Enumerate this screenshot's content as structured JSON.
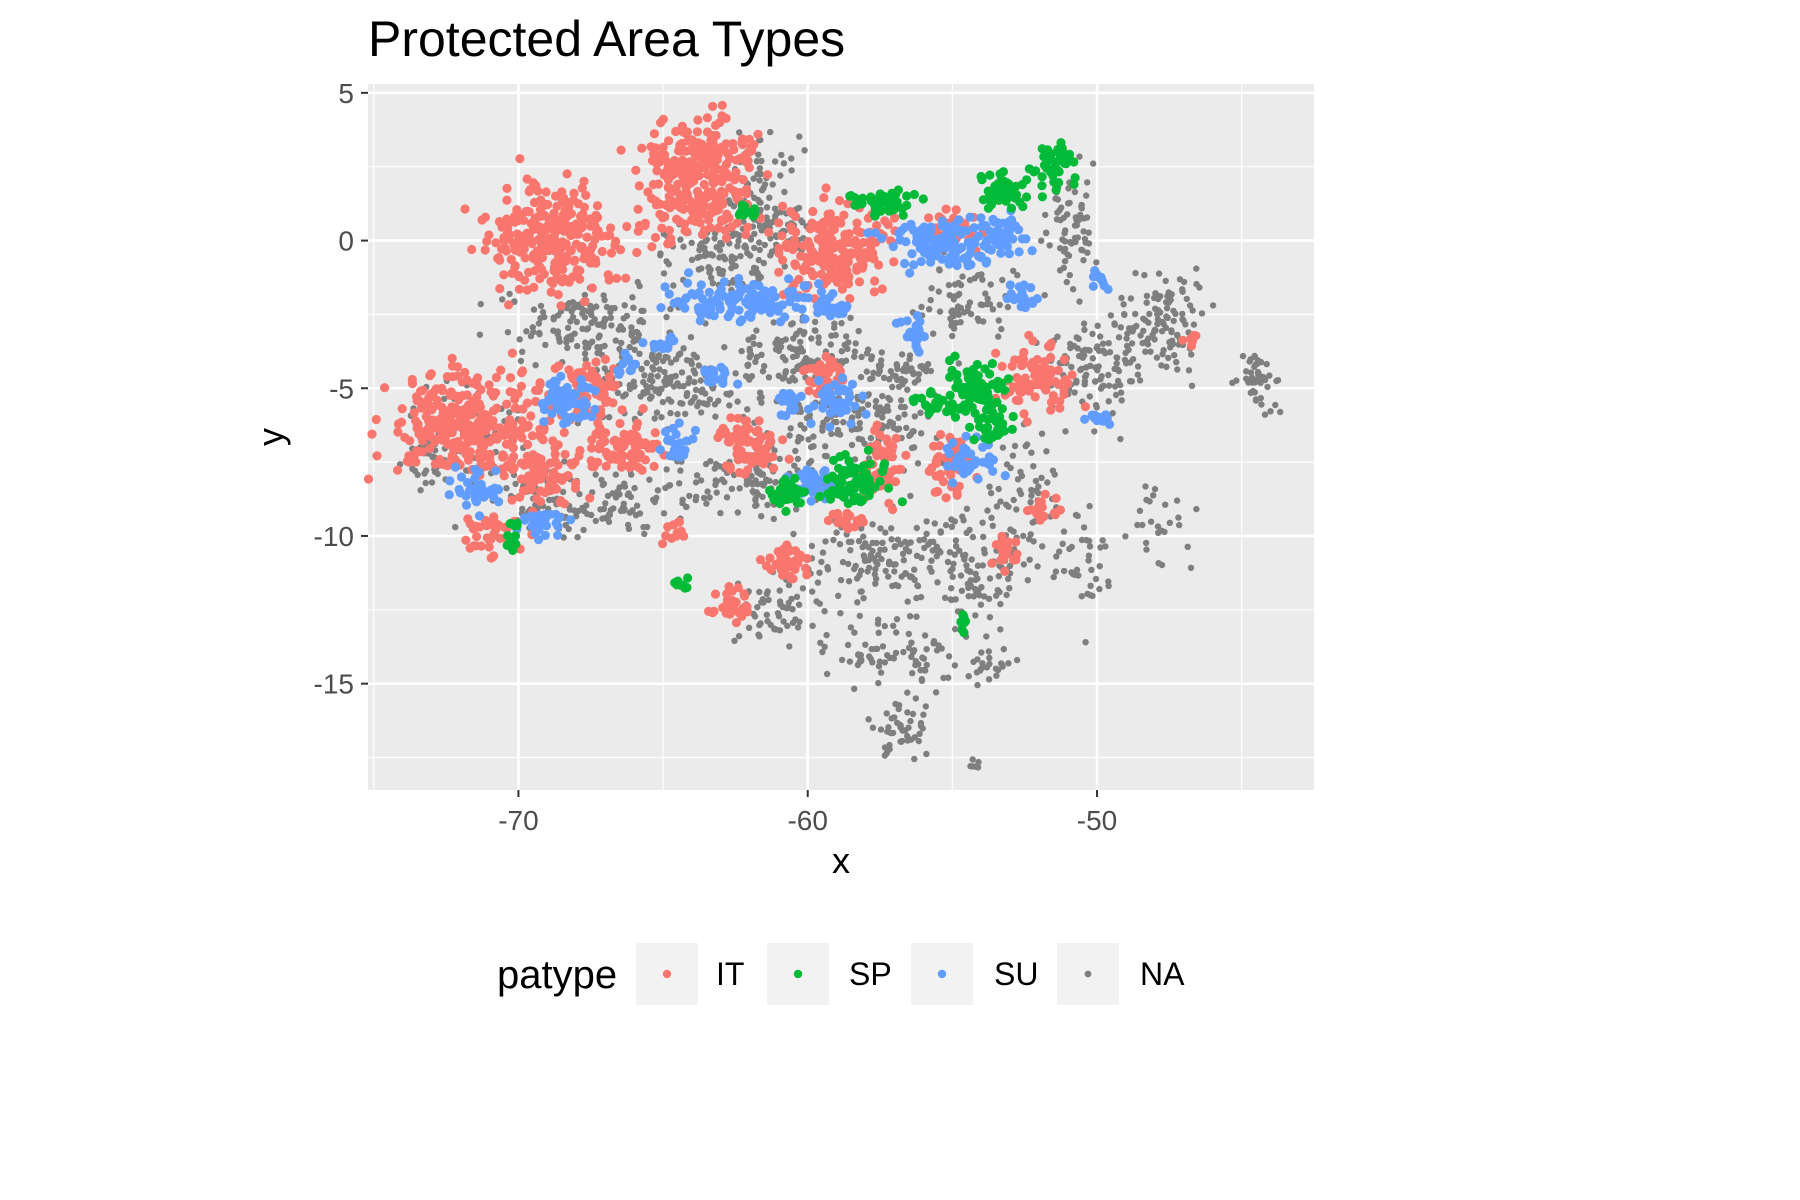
{
  "chart_data": {
    "type": "scatter",
    "title": "Protected Area Types",
    "xlabel": "x",
    "ylabel": "y",
    "xlim": [
      -75.2,
      -42.5
    ],
    "ylim": [
      -18.6,
      5.3
    ],
    "x_ticks": [
      -70,
      -60,
      -50
    ],
    "y_ticks": [
      5,
      0,
      -5,
      -10,
      -15
    ],
    "x_tick_labels": [
      "-70",
      "-60",
      "-50"
    ],
    "y_tick_labels": [
      "5",
      "0",
      "-5",
      "-10",
      "-15"
    ],
    "grid": true,
    "legend": {
      "title": "patype",
      "position": "bottom",
      "entries": [
        "IT",
        "SP",
        "SU",
        "NA"
      ]
    },
    "series": [
      {
        "name": "IT",
        "color": "#F8766D",
        "clusters": [
          {
            "x": -68.8,
            "y": 0.1,
            "rx": 2.1,
            "ry": 1.7,
            "n": 260
          },
          {
            "x": -63.7,
            "y": 2.6,
            "rx": 1.8,
            "ry": 1.3,
            "n": 200
          },
          {
            "x": -63.8,
            "y": 0.9,
            "rx": 2.0,
            "ry": 0.8,
            "n": 90
          },
          {
            "x": -59.0,
            "y": -0.3,
            "rx": 1.7,
            "ry": 1.4,
            "n": 200
          },
          {
            "x": -71.6,
            "y": -6.1,
            "rx": 2.5,
            "ry": 1.5,
            "n": 300
          },
          {
            "x": -69.3,
            "y": -8.0,
            "rx": 1.4,
            "ry": 0.9,
            "n": 80
          },
          {
            "x": -67.5,
            "y": -5.2,
            "rx": 1.1,
            "ry": 0.9,
            "n": 70
          },
          {
            "x": -66.5,
            "y": -7.0,
            "rx": 1.4,
            "ry": 0.7,
            "n": 80
          },
          {
            "x": -62.0,
            "y": -6.9,
            "rx": 0.9,
            "ry": 0.9,
            "n": 70
          },
          {
            "x": -59.4,
            "y": -4.6,
            "rx": 0.6,
            "ry": 0.6,
            "n": 40
          },
          {
            "x": -57.4,
            "y": -7.6,
            "rx": 0.6,
            "ry": 1.1,
            "n": 60
          },
          {
            "x": -55.1,
            "y": -7.6,
            "rx": 0.6,
            "ry": 1.0,
            "n": 50
          },
          {
            "x": -52.1,
            "y": -4.6,
            "rx": 1.3,
            "ry": 1.0,
            "n": 90
          },
          {
            "x": -55.0,
            "y": 0.4,
            "rx": 0.8,
            "ry": 0.6,
            "n": 40
          },
          {
            "x": -60.7,
            "y": -10.8,
            "rx": 0.7,
            "ry": 0.6,
            "n": 40
          },
          {
            "x": -62.7,
            "y": -12.3,
            "rx": 0.5,
            "ry": 0.5,
            "n": 30
          },
          {
            "x": -71.0,
            "y": -10.0,
            "rx": 1.0,
            "ry": 0.6,
            "n": 40
          },
          {
            "x": -53.2,
            "y": -10.5,
            "rx": 0.4,
            "ry": 0.6,
            "n": 20
          },
          {
            "x": -51.9,
            "y": -9.0,
            "rx": 0.4,
            "ry": 0.4,
            "n": 15
          },
          {
            "x": -58.7,
            "y": -9.5,
            "rx": 0.6,
            "ry": 0.3,
            "n": 20
          },
          {
            "x": -64.6,
            "y": -9.8,
            "rx": 0.4,
            "ry": 0.4,
            "n": 12
          },
          {
            "x": -46.8,
            "y": -3.3,
            "rx": 0.2,
            "ry": 0.2,
            "n": 6
          }
        ]
      },
      {
        "name": "SP",
        "color": "#00BA38",
        "clusters": [
          {
            "x": -53.3,
            "y": 1.7,
            "rx": 0.9,
            "ry": 0.6,
            "n": 60
          },
          {
            "x": -51.5,
            "y": 2.6,
            "rx": 0.6,
            "ry": 0.7,
            "n": 40
          },
          {
            "x": -57.4,
            "y": 1.3,
            "rx": 1.1,
            "ry": 0.4,
            "n": 50
          },
          {
            "x": -54.2,
            "y": -5.0,
            "rx": 1.1,
            "ry": 0.9,
            "n": 70
          },
          {
            "x": -53.6,
            "y": -6.3,
            "rx": 0.6,
            "ry": 0.5,
            "n": 30
          },
          {
            "x": -58.3,
            "y": -8.2,
            "rx": 1.0,
            "ry": 0.8,
            "n": 70
          },
          {
            "x": -60.7,
            "y": -8.5,
            "rx": 0.6,
            "ry": 0.5,
            "n": 35
          },
          {
            "x": -70.2,
            "y": -9.9,
            "rx": 0.3,
            "ry": 0.5,
            "n": 15
          },
          {
            "x": -64.5,
            "y": -11.6,
            "rx": 0.3,
            "ry": 0.2,
            "n": 10
          },
          {
            "x": -54.6,
            "y": -12.9,
            "rx": 0.2,
            "ry": 0.3,
            "n": 8
          },
          {
            "x": -55.7,
            "y": -5.5,
            "rx": 0.5,
            "ry": 0.4,
            "n": 20
          },
          {
            "x": -62.0,
            "y": 1.0,
            "rx": 0.5,
            "ry": 0.3,
            "n": 12
          }
        ]
      },
      {
        "name": "SU",
        "color": "#619CFF",
        "clusters": [
          {
            "x": -62.1,
            "y": -2.0,
            "rx": 2.4,
            "ry": 0.6,
            "n": 120
          },
          {
            "x": -55.5,
            "y": -0.1,
            "rx": 1.6,
            "ry": 0.8,
            "n": 100
          },
          {
            "x": -53.5,
            "y": 0.2,
            "rx": 0.9,
            "ry": 0.7,
            "n": 60
          },
          {
            "x": -68.3,
            "y": -5.3,
            "rx": 0.9,
            "ry": 0.8,
            "n": 60
          },
          {
            "x": -71.4,
            "y": -8.4,
            "rx": 0.9,
            "ry": 0.6,
            "n": 40
          },
          {
            "x": -69.1,
            "y": -9.6,
            "rx": 0.8,
            "ry": 0.4,
            "n": 30
          },
          {
            "x": -58.9,
            "y": -5.5,
            "rx": 0.8,
            "ry": 0.7,
            "n": 45
          },
          {
            "x": -54.3,
            "y": -7.3,
            "rx": 0.7,
            "ry": 0.7,
            "n": 40
          },
          {
            "x": -59.8,
            "y": -8.2,
            "rx": 0.8,
            "ry": 0.5,
            "n": 40
          },
          {
            "x": -56.3,
            "y": -3.2,
            "rx": 0.4,
            "ry": 0.6,
            "n": 25
          },
          {
            "x": -59.2,
            "y": -2.3,
            "rx": 0.6,
            "ry": 0.3,
            "n": 20
          },
          {
            "x": -52.6,
            "y": -2.0,
            "rx": 0.5,
            "ry": 0.5,
            "n": 20
          },
          {
            "x": -64.5,
            "y": -6.9,
            "rx": 0.6,
            "ry": 0.5,
            "n": 25
          },
          {
            "x": -60.7,
            "y": -5.5,
            "rx": 0.4,
            "ry": 0.4,
            "n": 20
          },
          {
            "x": -50.0,
            "y": -6.0,
            "rx": 0.4,
            "ry": 0.2,
            "n": 15
          },
          {
            "x": -49.9,
            "y": -1.4,
            "rx": 0.3,
            "ry": 0.3,
            "n": 10
          },
          {
            "x": -65.0,
            "y": -3.5,
            "rx": 0.4,
            "ry": 0.4,
            "n": 15
          },
          {
            "x": -63.1,
            "y": -4.5,
            "rx": 0.6,
            "ry": 0.3,
            "n": 18
          },
          {
            "x": -66.3,
            "y": -4.2,
            "rx": 0.4,
            "ry": 0.3,
            "n": 12
          }
        ]
      },
      {
        "name": "NA",
        "color": "#7F7F7F",
        "clusters": [
          {
            "x": -62.9,
            "y": -0.4,
            "rx": 2.0,
            "ry": 1.3,
            "n": 120
          },
          {
            "x": -61.5,
            "y": 1.8,
            "rx": 1.2,
            "ry": 1.5,
            "n": 60
          },
          {
            "x": -67.5,
            "y": -2.8,
            "rx": 2.8,
            "ry": 1.1,
            "n": 150
          },
          {
            "x": -64.8,
            "y": -4.8,
            "rx": 2.8,
            "ry": 1.2,
            "n": 170
          },
          {
            "x": -60.0,
            "y": -3.8,
            "rx": 2.1,
            "ry": 1.1,
            "n": 120
          },
          {
            "x": -58.2,
            "y": -6.2,
            "rx": 2.2,
            "ry": 1.2,
            "n": 130
          },
          {
            "x": -62.0,
            "y": -8.2,
            "rx": 2.6,
            "ry": 1.0,
            "n": 110
          },
          {
            "x": -67.8,
            "y": -8.8,
            "rx": 3.2,
            "ry": 1.0,
            "n": 130
          },
          {
            "x": -57.2,
            "y": -10.7,
            "rx": 2.6,
            "ry": 1.3,
            "n": 130
          },
          {
            "x": -54.1,
            "y": -11.3,
            "rx": 1.6,
            "ry": 1.8,
            "n": 100
          },
          {
            "x": -57.2,
            "y": -14.0,
            "rx": 1.9,
            "ry": 1.2,
            "n": 80
          },
          {
            "x": -56.7,
            "y": -16.6,
            "rx": 0.9,
            "ry": 0.8,
            "n": 45
          },
          {
            "x": -61.0,
            "y": -12.5,
            "rx": 1.4,
            "ry": 1.0,
            "n": 60
          },
          {
            "x": -52.4,
            "y": -8.6,
            "rx": 1.1,
            "ry": 2.0,
            "n": 60
          },
          {
            "x": -50.1,
            "y": -4.3,
            "rx": 1.6,
            "ry": 1.6,
            "n": 110
          },
          {
            "x": -47.6,
            "y": -2.8,
            "rx": 1.4,
            "ry": 1.6,
            "n": 110
          },
          {
            "x": -44.4,
            "y": -4.7,
            "rx": 0.6,
            "ry": 1.0,
            "n": 45
          },
          {
            "x": -51.0,
            "y": 0.7,
            "rx": 0.8,
            "ry": 1.9,
            "n": 70
          },
          {
            "x": -54.3,
            "y": -2.0,
            "rx": 1.6,
            "ry": 1.0,
            "n": 70
          },
          {
            "x": -56.8,
            "y": -4.5,
            "rx": 1.2,
            "ry": 0.7,
            "n": 50
          },
          {
            "x": -71.8,
            "y": -6.4,
            "rx": 1.8,
            "ry": 1.4,
            "n": 60
          },
          {
            "x": -73.2,
            "y": -7.6,
            "rx": 0.8,
            "ry": 0.8,
            "n": 30
          },
          {
            "x": -50.3,
            "y": -10.8,
            "rx": 1.0,
            "ry": 1.6,
            "n": 40
          },
          {
            "x": -47.7,
            "y": -9.8,
            "rx": 0.9,
            "ry": 1.7,
            "n": 25
          },
          {
            "x": -53.7,
            "y": -14.5,
            "rx": 1.2,
            "ry": 0.7,
            "n": 25
          },
          {
            "x": -60.9,
            "y": 0.3,
            "rx": 1.0,
            "ry": 1.2,
            "n": 40
          },
          {
            "x": -54.2,
            "y": -17.8,
            "rx": 0.3,
            "ry": 0.2,
            "n": 6
          }
        ]
      }
    ]
  }
}
